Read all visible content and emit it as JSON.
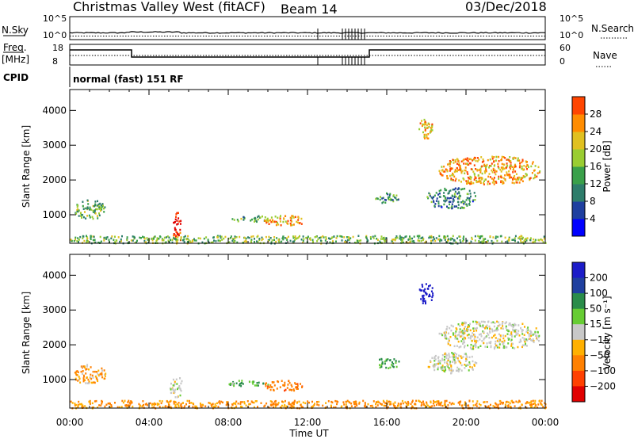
{
  "header": {
    "title": "Christmas Valley West (fitACF)",
    "beam": "Beam 14",
    "date": "03/Dec/2018"
  },
  "params": {
    "nsky_label": "N.Sky",
    "nsky_ticks": [
      "10^5",
      "10^0"
    ],
    "nsearch_label": "N.Search",
    "nsearch_ticks": [
      "10^5",
      "10^0"
    ],
    "freq_label_1": "Freq.",
    "freq_label_2": "[MHz]",
    "freq_ticks": [
      "18",
      "8"
    ],
    "nave_label": "Nave",
    "nave_ticks": [
      "60",
      "0"
    ],
    "cpid_label": "CPID",
    "cpid_text": "normal (fast) 151 RF"
  },
  "colors": {
    "power": [
      "#0000ff",
      "#1f3f9f",
      "#2e7d6b",
      "#3aa04a",
      "#9acd32",
      "#e0c020",
      "#ff8c00",
      "#ff4500",
      "#e00000"
    ],
    "velocity": [
      "#1c1cc8",
      "#1f3f9f",
      "#2a8c4a",
      "#66cc33",
      "#c8c8c8",
      "#ffb000",
      "#ff8000",
      "#ff4000",
      "#e00000"
    ]
  },
  "chart_data": [
    {
      "type": "heatmap",
      "name": "power",
      "xlabel": "Time UT",
      "ylabel": "Slant Range [km]",
      "xlim": [
        0,
        24
      ],
      "ylim": [
        180,
        4600
      ],
      "x_ticks": [
        "00:00",
        "04:00",
        "08:00",
        "12:00",
        "16:00",
        "20:00",
        "00:00"
      ],
      "y_ticks": [
        1000,
        2000,
        3000,
        4000
      ],
      "colorbar_label": "Power [dB]",
      "colorbar_ticks": [
        "4",
        "8",
        "12",
        "16",
        "20",
        "24",
        "28"
      ],
      "colorbar_range": [
        0,
        32
      ],
      "regions": [
        {
          "t0": 0.2,
          "t1": 1.8,
          "r0": 900,
          "r1": 1450,
          "level": 13
        },
        {
          "t0": 5.2,
          "t1": 5.6,
          "r0": 300,
          "r1": 1100,
          "level": 30
        },
        {
          "t0": 8.0,
          "t1": 10.0,
          "r0": 820,
          "r1": 1000,
          "level": 12
        },
        {
          "t0": 9.8,
          "t1": 11.8,
          "r0": 700,
          "r1": 1000,
          "level": 22
        },
        {
          "t0": 15.4,
          "t1": 16.6,
          "r0": 1350,
          "r1": 1650,
          "level": 12
        },
        {
          "t0": 17.6,
          "t1": 18.3,
          "r0": 3200,
          "r1": 3800,
          "level": 21
        },
        {
          "t0": 18.6,
          "t1": 23.7,
          "r0": 1900,
          "r1": 2700,
          "level": 22
        },
        {
          "t0": 18.0,
          "t1": 20.5,
          "r0": 1200,
          "r1": 1800,
          "level": 9
        },
        {
          "t0": 0.0,
          "t1": 24.0,
          "r0": 200,
          "r1": 420,
          "level": 14
        }
      ]
    },
    {
      "type": "heatmap",
      "name": "velocity",
      "xlabel": "Time UT",
      "ylabel": "Slant Range [km]",
      "xlim": [
        0,
        24
      ],
      "ylim": [
        180,
        4600
      ],
      "x_ticks": [
        "00:00",
        "04:00",
        "08:00",
        "12:00",
        "16:00",
        "20:00",
        "00:00"
      ],
      "y_ticks": [
        1000,
        2000,
        3000,
        4000
      ],
      "colorbar_label": "Velocity [m s⁻¹]",
      "colorbar_ticks": [
        "200",
        "100",
        "50",
        "15",
        "−15",
        "−50",
        "−100",
        "−200"
      ],
      "regions": [
        {
          "t0": 0.2,
          "t1": 1.8,
          "r0": 900,
          "r1": 1450,
          "vel": -30
        },
        {
          "t0": 5.0,
          "t1": 5.7,
          "r0": 500,
          "r1": 1100,
          "vel": 0
        },
        {
          "t0": 8.0,
          "t1": 10.0,
          "r0": 820,
          "r1": 1000,
          "vel": 30
        },
        {
          "t0": 9.8,
          "t1": 11.8,
          "r0": 700,
          "r1": 1000,
          "vel": -60
        },
        {
          "t0": 15.4,
          "t1": 16.6,
          "r0": 1350,
          "r1": 1650,
          "vel": 40
        },
        {
          "t0": 17.6,
          "t1": 18.3,
          "r0": 3200,
          "r1": 3800,
          "vel": 230
        },
        {
          "t0": 18.6,
          "t1": 23.7,
          "r0": 1900,
          "r1": 2700,
          "vel": 0
        },
        {
          "t0": 18.0,
          "t1": 20.5,
          "r0": 1200,
          "r1": 1800,
          "vel": 0
        },
        {
          "t0": 0.0,
          "t1": 24.0,
          "r0": 200,
          "r1": 420,
          "vel": -40
        }
      ]
    }
  ]
}
